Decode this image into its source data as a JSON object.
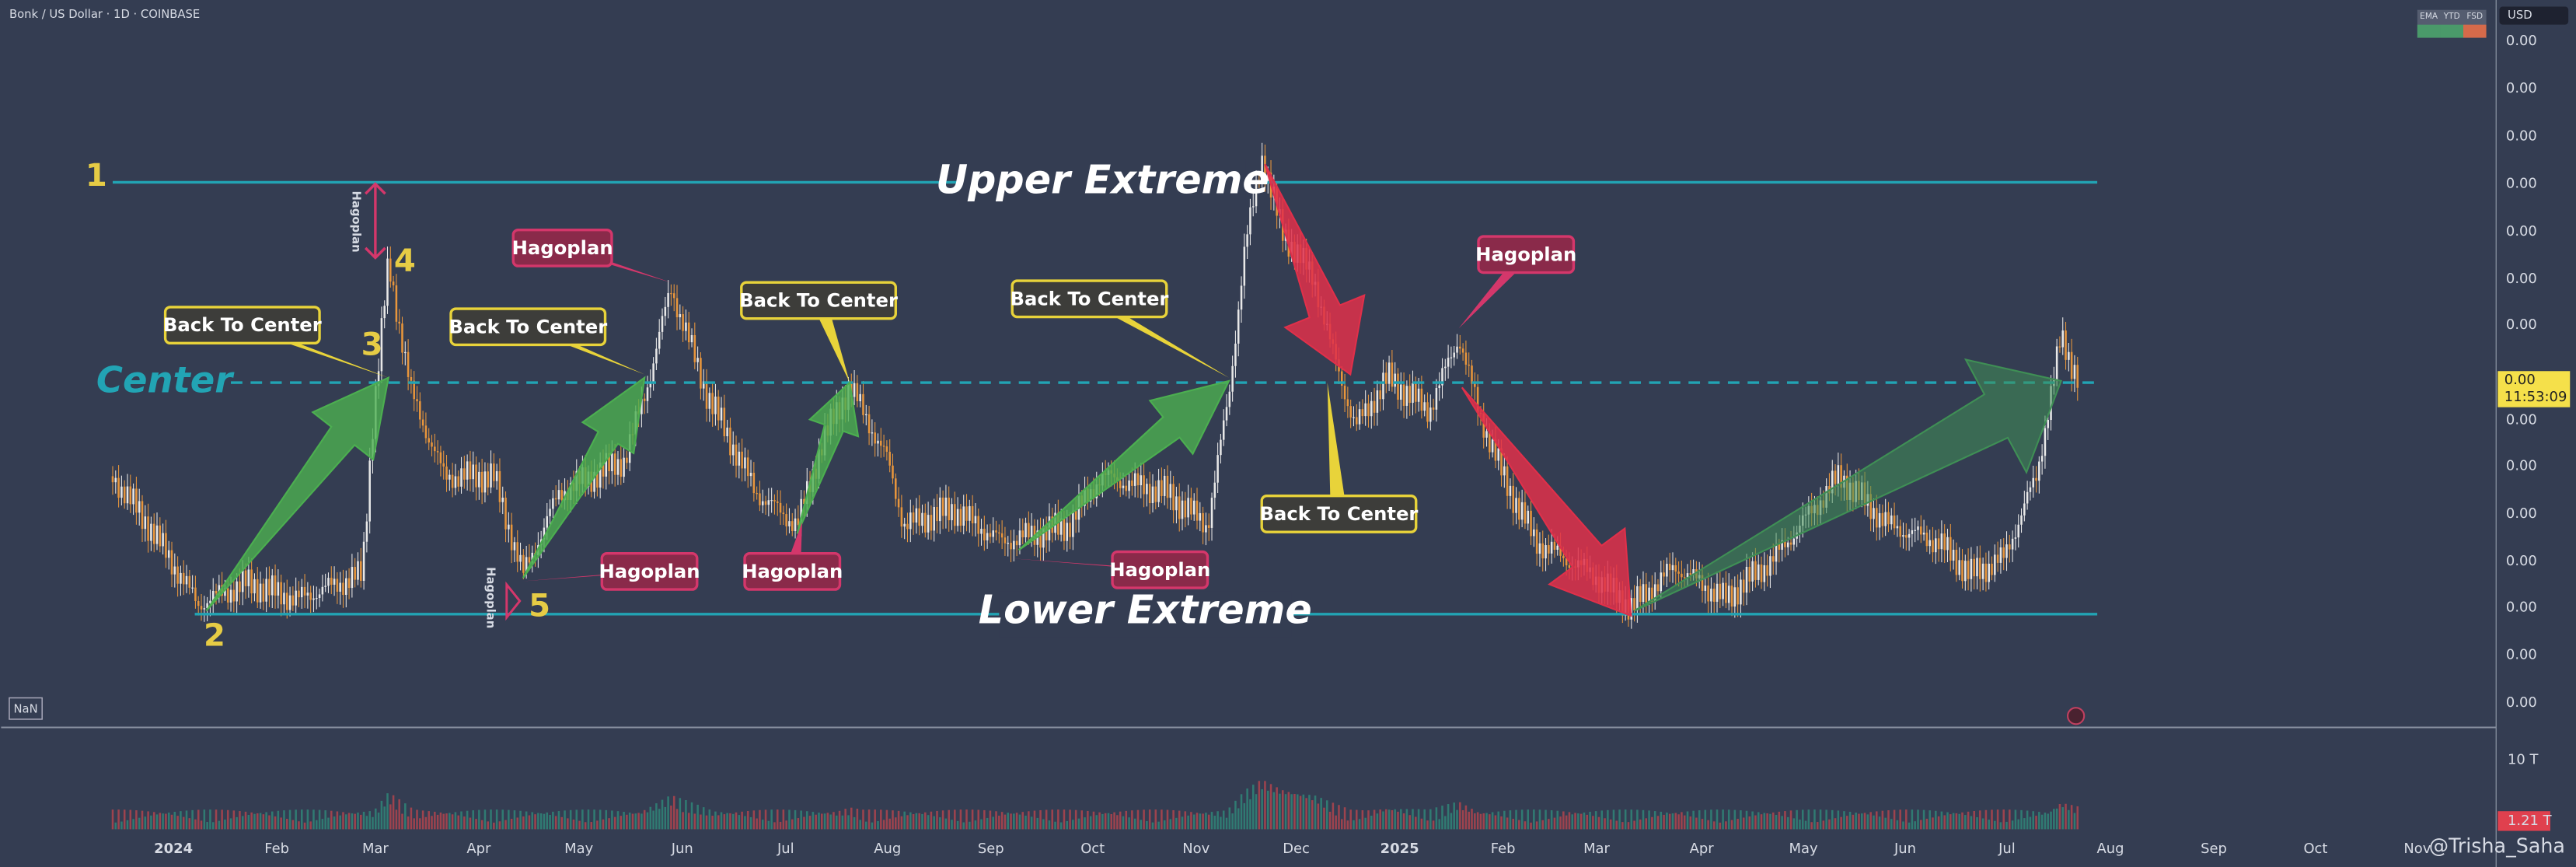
{
  "header": {
    "symbol": "Bonk / US Dollar · 1D · COINBASE",
    "currency": "USD",
    "indicators": [
      "EMA",
      "YTD",
      "FSD"
    ]
  },
  "price_axis": {
    "labels": [
      "0.00",
      "0.00",
      "0.00",
      "0.00",
      "0.00",
      "0.00",
      "0.00",
      "0.00",
      "0.00",
      "0.00",
      "0.00",
      "0.00",
      "0.00",
      "0.00"
    ],
    "current_price": "0.00",
    "countdown": "11:53:09"
  },
  "volume_axis": {
    "label": "10 T",
    "current_volume": "1.21 T"
  },
  "time_axis": {
    "labels": [
      "2024",
      "Feb",
      "Mar",
      "Apr",
      "May",
      "Jun",
      "Jul",
      "Aug",
      "Sep",
      "Oct",
      "Nov",
      "Dec",
      "2025",
      "Feb",
      "Mar",
      "Apr",
      "May",
      "Jun",
      "Jul",
      "Aug",
      "Sep",
      "Oct",
      "Nov"
    ]
  },
  "levels": {
    "upper": "Upper Extreme",
    "center": "Center",
    "lower": "Lower Extreme"
  },
  "points": [
    "1",
    "2",
    "3",
    "4",
    "5"
  ],
  "callouts": [
    "Back To Center",
    "Back To Center",
    "Back To Center",
    "Back To Center",
    "Back To Center",
    "Hagoplan",
    "Hagoplan",
    "Hagoplan",
    "Hagoplan",
    "Hagoplan"
  ],
  "side_labels": [
    "Hagoplan",
    "Hagoplan"
  ],
  "badge": "NaN",
  "watermark": "@Trisha_Saha"
}
